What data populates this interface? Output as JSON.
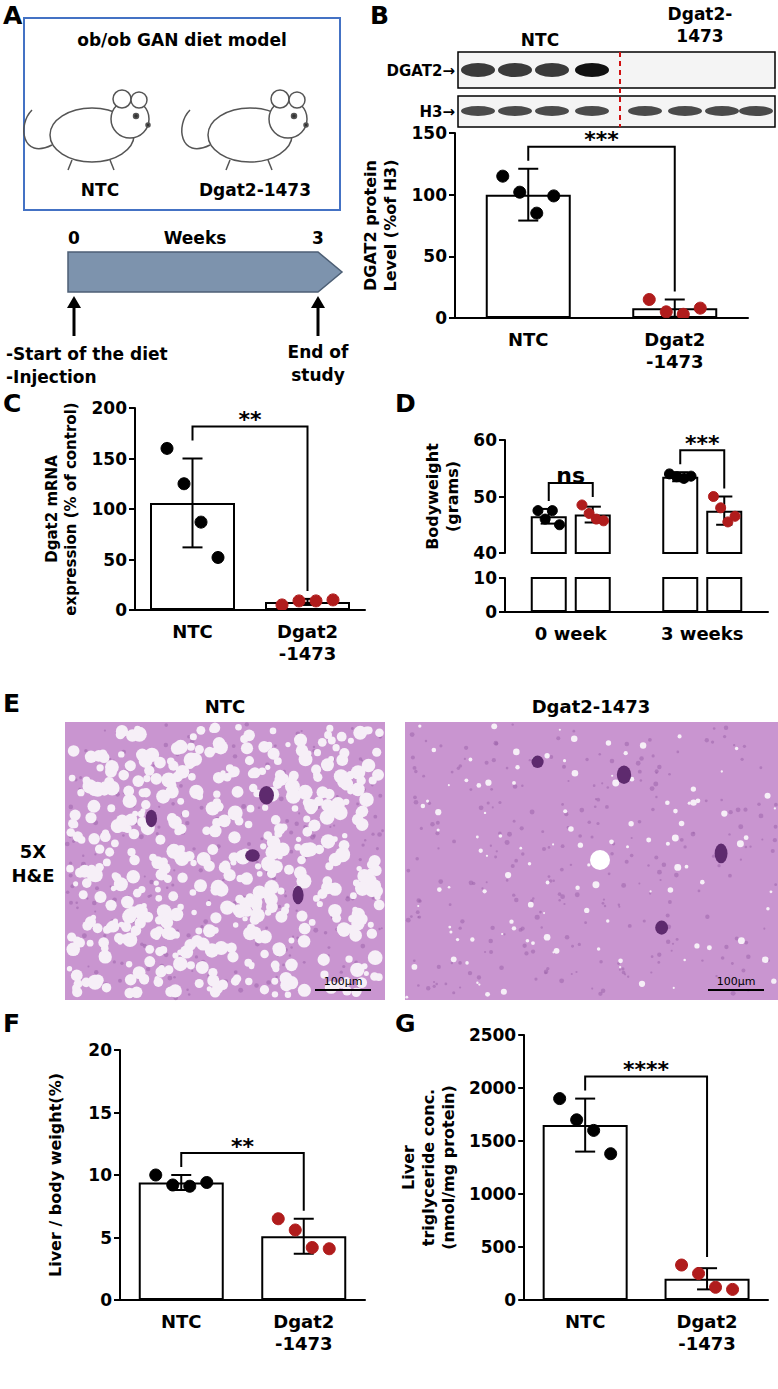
{
  "panel_a": {
    "panel": "A",
    "title": "ob/ob GAN diet model",
    "groups": [
      "NTC",
      "Dgat2-1473"
    ],
    "timeline": {
      "start": 0,
      "label": "Weeks",
      "end": 3,
      "start_notes": [
        "-Start of the diet",
        "-Injection"
      ],
      "end_note": "End of\nstudy"
    }
  },
  "panel_b_blot": {
    "bands": [
      "DGAT2→",
      "H3→"
    ],
    "lanes": [
      "NTC",
      "Dgat2-\n1473"
    ]
  },
  "panel_e": {
    "panel": "E",
    "columns": [
      "NTC",
      "Dgat2-1473"
    ],
    "row_label": "5X\nH&E",
    "scale_bar": "100µm"
  },
  "chart_data": [
    {
      "panel": "B",
      "type": "bar",
      "y_label": "DGAT2 protein\nLevel (%of H3)",
      "categories": [
        "NTC",
        "Dgat2\n-1473"
      ],
      "ylim": [
        0,
        150
      ],
      "yticks": [
        0,
        50,
        100,
        150
      ],
      "grid": false,
      "series": [
        {
          "type": "bar",
          "color": "#ffffff",
          "values": [
            100,
            8
          ],
          "errors": [
            21,
            7
          ]
        },
        {
          "type": "scatter",
          "colors": [
            "#000000",
            "#b01c1c"
          ],
          "values": [
            [
              115,
              102,
              85,
              99
            ],
            [
              15,
              5,
              3,
              8
            ]
          ]
        }
      ],
      "significance": [
        {
          "text": "***",
          "between": [
            "NTC",
            "Dgat2\n-1473"
          ]
        }
      ]
    },
    {
      "panel": "C",
      "type": "bar",
      "y_label": "Dgat2 mRNA\nexpression (% of control)",
      "categories": [
        "NTC",
        "Dgat2\n-1473"
      ],
      "ylim": [
        0,
        200
      ],
      "yticks": [
        0,
        50,
        100,
        150,
        200
      ],
      "grid": false,
      "series": [
        {
          "type": "bar",
          "color": "#ffffff",
          "values": [
            106,
            8
          ],
          "errors": [
            44,
            3
          ]
        },
        {
          "type": "scatter",
          "colors": [
            "#000000",
            "#b01c1c"
          ],
          "values": [
            [
              160,
              125,
              87,
              52
            ],
            [
              5,
              9,
              9,
              10
            ]
          ]
        }
      ],
      "significance": [
        {
          "text": "**",
          "between": [
            "NTC",
            "Dgat2\n-1473"
          ]
        }
      ]
    },
    {
      "panel": "D",
      "type": "bar",
      "y_label": "Bodyweight\n(grams)",
      "categories": [
        "0 week",
        "3 weeks"
      ],
      "ylim": [
        0,
        60
      ],
      "y_break": [
        10,
        40
      ],
      "yticks": [
        0,
        10,
        40,
        50,
        60
      ],
      "grid": false,
      "series": [
        {
          "type": "bar",
          "color": "#ffffff",
          "values": [
            46.5,
            53.5
          ],
          "errors": [
            1.3,
            0.8
          ]
        },
        {
          "type": "bar",
          "color": "#ffffff",
          "values": [
            46.8,
            47.5
          ],
          "errors": [
            1.4,
            2.5
          ]
        },
        {
          "type": "scatter",
          "colors": [
            "#000000",
            "#000000"
          ],
          "values": [
            [
              47.5,
              46,
              47.5,
              45
            ],
            [
              54,
              53.5,
              53.2,
              53.6
            ]
          ]
        },
        {
          "type": "scatter",
          "colors": [
            "#b01c1c",
            "#b01c1c"
          ],
          "values": [
            [
              48.5,
              47,
              46,
              45.7
            ],
            [
              50,
              48,
              45.5,
              46.5
            ]
          ]
        }
      ],
      "significance": [
        {
          "text": "ns",
          "category": "0 week"
        },
        {
          "text": "***",
          "category": "3 weeks"
        }
      ]
    },
    {
      "panel": "F",
      "type": "bar",
      "y_label": "Liver / body weight(%)",
      "categories": [
        "NTC",
        "Dgat2\n-1473"
      ],
      "ylim": [
        0,
        20
      ],
      "yticks": [
        0,
        5,
        10,
        15,
        20
      ],
      "grid": false,
      "series": [
        {
          "type": "bar",
          "color": "#ffffff",
          "values": [
            9.4,
            5.1
          ],
          "errors": [
            0.6,
            1.4
          ]
        },
        {
          "type": "scatter",
          "colors": [
            "#000000",
            "#b01c1c"
          ],
          "values": [
            [
              10,
              9.2,
              9.1,
              9.4
            ],
            [
              6.5,
              5.6,
              4.2,
              4.1
            ]
          ]
        }
      ],
      "significance": [
        {
          "text": "**",
          "between": [
            "NTC",
            "Dgat2\n-1473"
          ]
        }
      ]
    },
    {
      "panel": "G",
      "type": "bar",
      "y_label": "Liver\ntriglyceride conc.\n(nmol/mg protein)",
      "categories": [
        "NTC",
        "Dgat2\n-1473"
      ],
      "ylim": [
        0,
        2500
      ],
      "yticks": [
        0,
        500,
        1000,
        1500,
        2000,
        2500
      ],
      "grid": false,
      "series": [
        {
          "type": "bar",
          "color": "#ffffff",
          "values": [
            1650,
            200
          ],
          "errors": [
            250,
            100
          ]
        },
        {
          "type": "scatter",
          "colors": [
            "#000000",
            "#b01c1c"
          ],
          "values": [
            [
              1900,
              1700,
              1600,
              1380
            ],
            [
              330,
              250,
              120,
              100
            ]
          ]
        }
      ],
      "significance": [
        {
          "text": "****",
          "between": [
            "NTC",
            "Dgat2\n-1473"
          ]
        }
      ]
    }
  ]
}
